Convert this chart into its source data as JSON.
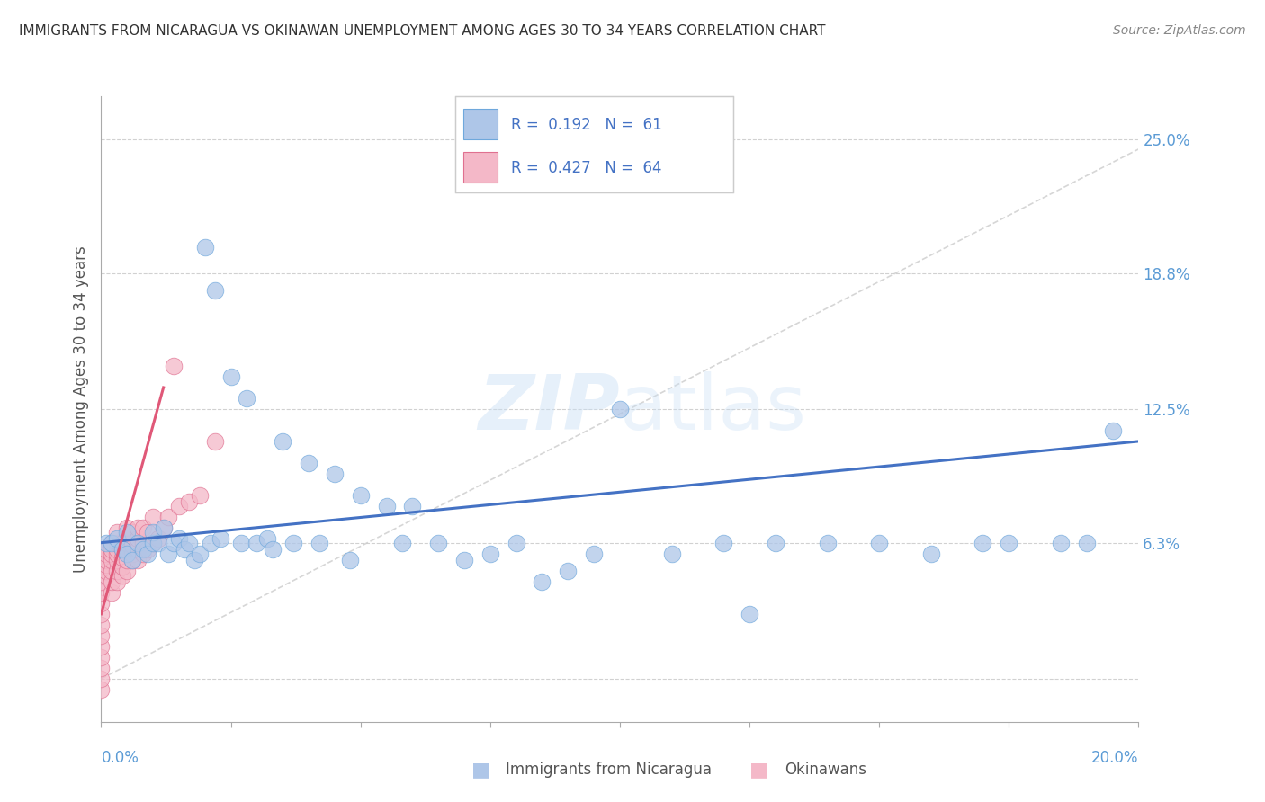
{
  "title": "IMMIGRANTS FROM NICARAGUA VS OKINAWAN UNEMPLOYMENT AMONG AGES 30 TO 34 YEARS CORRELATION CHART",
  "source": "Source: ZipAtlas.com",
  "ylabel": "Unemployment Among Ages 30 to 34 years",
  "legend_label1": "Immigrants from Nicaragua",
  "legend_label2": "Okinawans",
  "R1": 0.192,
  "N1": 61,
  "R2": 0.427,
  "N2": 64,
  "xlim": [
    0.0,
    0.2
  ],
  "ylim": [
    -0.02,
    0.27
  ],
  "yticks": [
    0.0,
    0.063,
    0.125,
    0.188,
    0.25
  ],
  "ytick_labels": [
    "",
    "6.3%",
    "12.5%",
    "18.8%",
    "25.0%"
  ],
  "xticks": [
    0.0,
    0.025,
    0.05,
    0.075,
    0.1,
    0.125,
    0.15,
    0.175,
    0.2
  ],
  "color_blue": "#aec6e8",
  "color_blue_edge": "#6fa8dc",
  "color_blue_line": "#4472c4",
  "color_pink": "#f4b8c8",
  "color_pink_edge": "#e07090",
  "color_pink_line": "#e05878",
  "color_gray_dash": "#cccccc",
  "watermark_color": "#ddeeff",
  "background": "#ffffff",
  "blue_x": [
    0.001,
    0.002,
    0.003,
    0.004,
    0.005,
    0.005,
    0.006,
    0.007,
    0.008,
    0.009,
    0.01,
    0.01,
    0.011,
    0.012,
    0.013,
    0.014,
    0.015,
    0.016,
    0.017,
    0.018,
    0.019,
    0.02,
    0.021,
    0.022,
    0.023,
    0.025,
    0.027,
    0.028,
    0.03,
    0.032,
    0.033,
    0.035,
    0.037,
    0.04,
    0.042,
    0.045,
    0.048,
    0.05,
    0.055,
    0.058,
    0.06,
    0.065,
    0.07,
    0.075,
    0.08,
    0.085,
    0.09,
    0.095,
    0.1,
    0.11,
    0.12,
    0.125,
    0.13,
    0.14,
    0.15,
    0.16,
    0.17,
    0.175,
    0.185,
    0.19,
    0.195
  ],
  "blue_y": [
    0.063,
    0.063,
    0.065,
    0.06,
    0.058,
    0.068,
    0.055,
    0.063,
    0.06,
    0.058,
    0.063,
    0.068,
    0.063,
    0.07,
    0.058,
    0.063,
    0.065,
    0.06,
    0.063,
    0.055,
    0.058,
    0.2,
    0.063,
    0.18,
    0.065,
    0.14,
    0.063,
    0.13,
    0.063,
    0.065,
    0.06,
    0.11,
    0.063,
    0.1,
    0.063,
    0.095,
    0.055,
    0.085,
    0.08,
    0.063,
    0.08,
    0.063,
    0.055,
    0.058,
    0.063,
    0.045,
    0.05,
    0.058,
    0.125,
    0.058,
    0.063,
    0.03,
    0.063,
    0.063,
    0.063,
    0.058,
    0.063,
    0.063,
    0.063,
    0.063,
    0.115
  ],
  "pink_x": [
    0.0,
    0.0,
    0.0,
    0.0,
    0.0,
    0.0,
    0.0,
    0.0,
    0.0,
    0.0,
    0.0,
    0.001,
    0.001,
    0.001,
    0.001,
    0.001,
    0.001,
    0.002,
    0.002,
    0.002,
    0.002,
    0.002,
    0.002,
    0.002,
    0.003,
    0.003,
    0.003,
    0.003,
    0.003,
    0.003,
    0.003,
    0.004,
    0.004,
    0.004,
    0.004,
    0.004,
    0.005,
    0.005,
    0.005,
    0.005,
    0.005,
    0.006,
    0.006,
    0.006,
    0.006,
    0.007,
    0.007,
    0.007,
    0.007,
    0.008,
    0.008,
    0.008,
    0.009,
    0.009,
    0.01,
    0.01,
    0.011,
    0.012,
    0.013,
    0.014,
    0.015,
    0.017,
    0.019,
    0.022
  ],
  "pink_y": [
    -0.005,
    0.0,
    0.005,
    0.01,
    0.015,
    0.02,
    0.025,
    0.03,
    0.035,
    0.04,
    0.045,
    0.048,
    0.05,
    0.053,
    0.055,
    0.058,
    0.06,
    0.04,
    0.045,
    0.05,
    0.055,
    0.058,
    0.06,
    0.063,
    0.045,
    0.05,
    0.055,
    0.058,
    0.06,
    0.063,
    0.068,
    0.048,
    0.052,
    0.056,
    0.06,
    0.063,
    0.05,
    0.055,
    0.06,
    0.063,
    0.07,
    0.055,
    0.058,
    0.062,
    0.068,
    0.055,
    0.06,
    0.065,
    0.07,
    0.058,
    0.063,
    0.07,
    0.06,
    0.068,
    0.063,
    0.075,
    0.065,
    0.07,
    0.075,
    0.145,
    0.08,
    0.082,
    0.085,
    0.11
  ]
}
